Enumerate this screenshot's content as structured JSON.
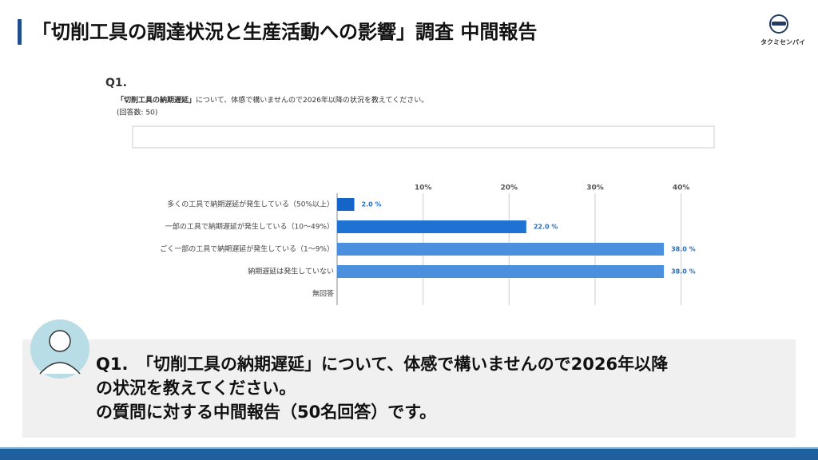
{
  "header": {
    "title": "「切削工具の調達状況と生産活動への影響」調査 中間報告",
    "logo": "タクミセンパイ"
  },
  "question": {
    "label": "Q1.",
    "text_bold": "「切削工具の納期遅延」",
    "text_rest": "について、体感で構いませんので2026年以降の状況を教えてください。",
    "responses": "(回答数: 50)"
  },
  "chart_data": {
    "type": "hbar",
    "categories": [
      "多くの工具で納期遅延が発生している（50%以上）",
      "一部の工具で納期遅延が発生している（10〜49%）",
      "ごく一部の工具で納期遅延が発生している（1〜9%）",
      "納期遅延は発生していない",
      "無回答"
    ],
    "values": [
      2.0,
      22.0,
      38.0,
      38.0,
      0
    ],
    "value_labels": [
      "2.0 %",
      "22.0 %",
      "38.0 %",
      "38.0 %",
      null
    ],
    "colors": [
      "#1565c8",
      "#1e73d2",
      "#4a90df",
      "#4a90df",
      "#4a90df"
    ],
    "xlim": [
      0,
      40.5
    ],
    "xticks": [
      {
        "value": 10,
        "label": "10%"
      },
      {
        "value": 20,
        "label": "20%"
      },
      {
        "value": 30,
        "label": "30%"
      },
      {
        "value": 40,
        "label": "40%"
      }
    ],
    "grid": true
  },
  "caption": {
    "lines": [
      "Q1.　「切削工具の納期遅延」について、体感で構いませんので2026年以降",
      "の状況を教えてください。",
      "の質問に対する中間報告（50名回答）です。"
    ]
  }
}
